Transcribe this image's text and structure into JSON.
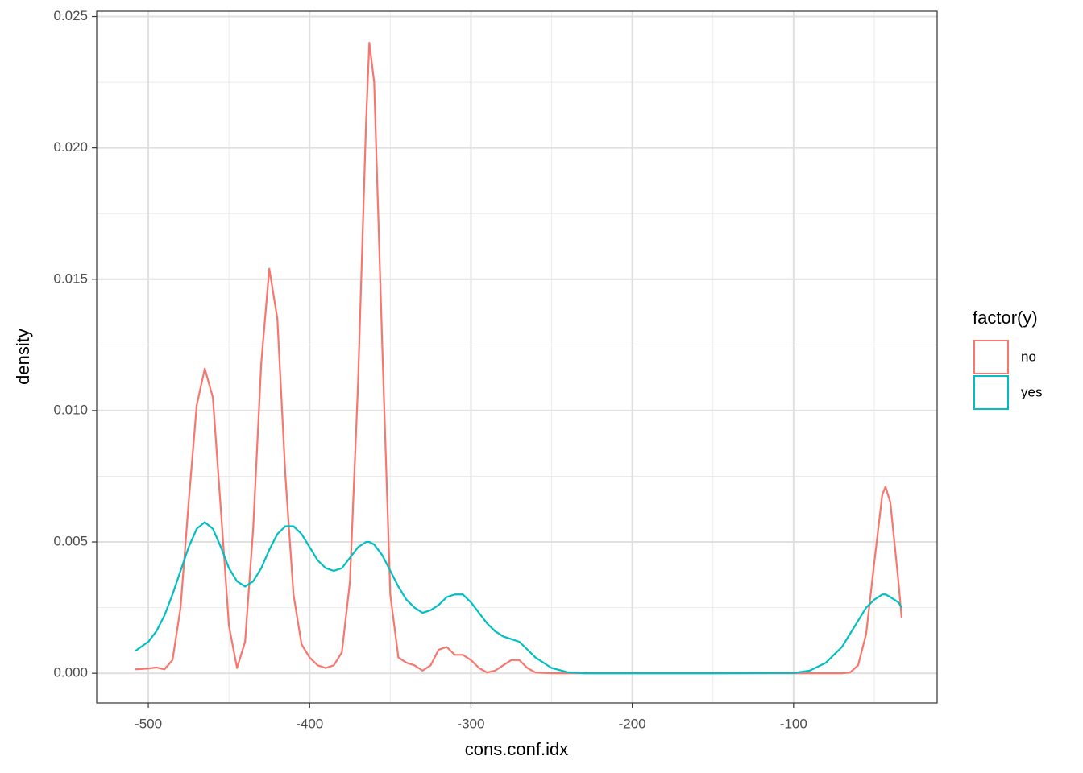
{
  "chart_data": {
    "type": "line",
    "x_label": "cons.conf.idx",
    "y_label": "density",
    "legend_title": "factor(y)",
    "legend_position": "right",
    "x": [
      -508,
      -500,
      -495,
      -490,
      -485,
      -480,
      -475,
      -470,
      -465,
      -460,
      -455,
      -450,
      -445,
      -440,
      -435,
      -430,
      -425,
      -420,
      -415,
      -410,
      -405,
      -400,
      -395,
      -390,
      -385,
      -380,
      -375,
      -370,
      -365,
      -363,
      -360,
      -355,
      -350,
      -345,
      -340,
      -335,
      -330,
      -325,
      -320,
      -315,
      -310,
      -305,
      -300,
      -295,
      -290,
      -285,
      -280,
      -275,
      -270,
      -265,
      -260,
      -250,
      -240,
      -230,
      -200,
      -150,
      -100,
      -90,
      -80,
      -70,
      -65,
      -60,
      -55,
      -50,
      -45,
      -43,
      -40,
      -35,
      -33
    ],
    "series": [
      {
        "name": "no",
        "color": "#F8766D",
        "values": [
          0.00015,
          0.00018,
          0.00022,
          0.00015,
          0.0005,
          0.0025,
          0.0065,
          0.0102,
          0.0116,
          0.0105,
          0.0062,
          0.0018,
          0.0002,
          0.0012,
          0.0055,
          0.0118,
          0.0154,
          0.0135,
          0.0075,
          0.003,
          0.0011,
          0.0006,
          0.0003,
          0.0002,
          0.0003,
          0.0008,
          0.0035,
          0.011,
          0.021,
          0.024,
          0.0225,
          0.0125,
          0.003,
          0.0006,
          0.0004,
          0.0003,
          0.0001,
          0.0003,
          0.0009,
          0.001,
          0.0007,
          0.0007,
          0.0005,
          0.0002,
          3e-05,
          0.0001,
          0.0003,
          0.0005,
          0.0005,
          0.0002,
          3e-05,
          0,
          0,
          0,
          0,
          0,
          0,
          0,
          0,
          0,
          3e-05,
          0.0003,
          0.0015,
          0.0042,
          0.0068,
          0.0071,
          0.0065,
          0.0035,
          0.0021
        ]
      },
      {
        "name": "yes",
        "color": "#00BFC4",
        "values": [
          0.00085,
          0.0012,
          0.0016,
          0.0022,
          0.003,
          0.0039,
          0.0048,
          0.0055,
          0.00575,
          0.0055,
          0.0048,
          0.004,
          0.0035,
          0.0033,
          0.0035,
          0.004,
          0.0047,
          0.0053,
          0.0056,
          0.0056,
          0.0053,
          0.0048,
          0.0043,
          0.004,
          0.0039,
          0.004,
          0.0044,
          0.0048,
          0.005,
          0.005,
          0.0049,
          0.0045,
          0.0039,
          0.0033,
          0.0028,
          0.0025,
          0.0023,
          0.0024,
          0.0026,
          0.0029,
          0.003,
          0.003,
          0.0027,
          0.0023,
          0.0019,
          0.0016,
          0.0014,
          0.0013,
          0.0012,
          0.0009,
          0.0006,
          0.0002,
          4e-05,
          0,
          0,
          0,
          1e-05,
          0.0001,
          0.0004,
          0.001,
          0.0015,
          0.002,
          0.0025,
          0.0028,
          0.003,
          0.003,
          0.0029,
          0.0027,
          0.0025
        ]
      }
    ],
    "xlim": [
      -532,
      -11
    ],
    "ylim": [
      -0.00113,
      0.0252
    ],
    "xticks": [
      -500,
      -400,
      -300,
      -200,
      -100
    ],
    "yticks": [
      {
        "value": 0,
        "label": "0.000"
      },
      {
        "value": 0.005,
        "label": "0.005"
      },
      {
        "value": 0.01,
        "label": "0.010"
      },
      {
        "value": 0.015,
        "label": "0.015"
      },
      {
        "value": 0.02,
        "label": "0.020"
      },
      {
        "value": 0.025,
        "label": "0.025"
      }
    ],
    "minor_xticks": [
      -450,
      -350,
      -250,
      -150,
      -50
    ],
    "minor_yticks": [
      0.0025,
      0.0075,
      0.0125,
      0.0175,
      0.0225
    ],
    "grid": true
  }
}
